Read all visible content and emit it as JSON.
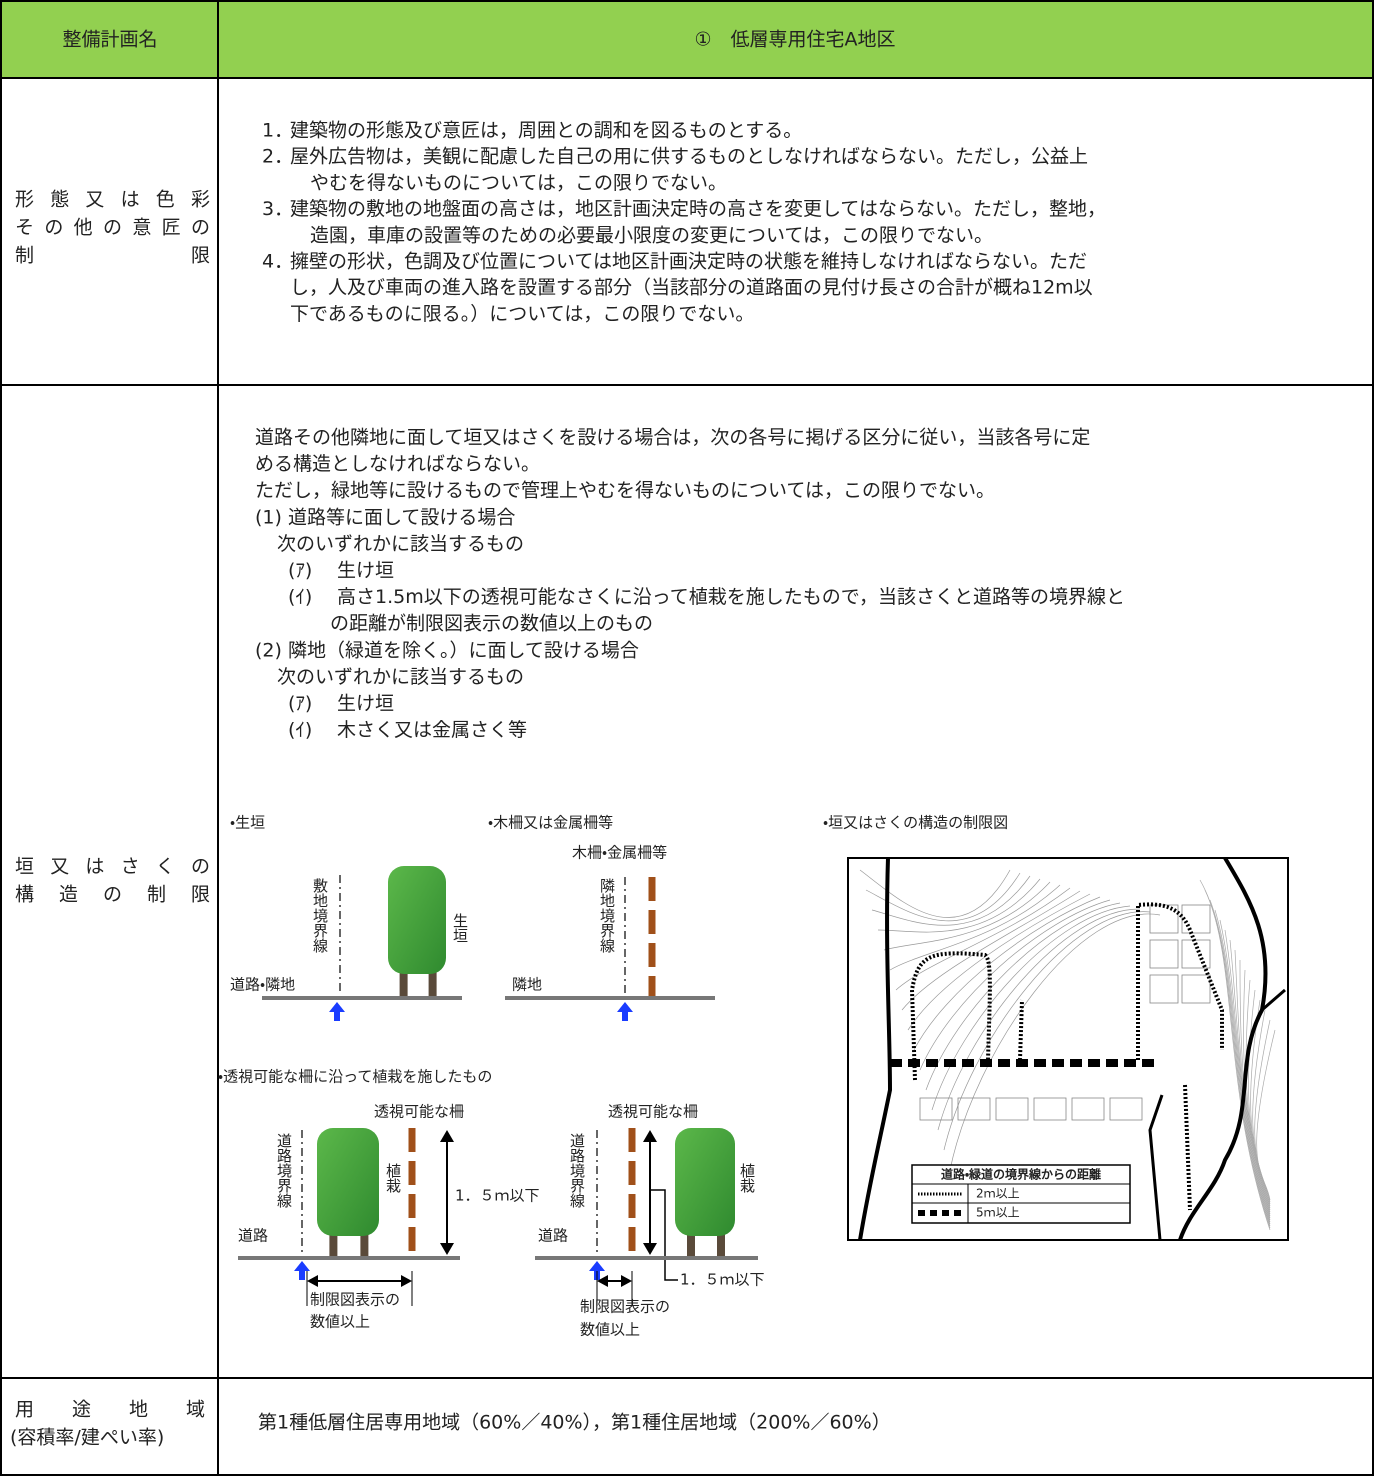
{
  "header": {
    "col1": "整備計画名",
    "col2": "①　低層専用住宅A地区"
  },
  "rows": [
    {
      "label": [
        "形態又は色彩",
        "その他の意匠の",
        "制限"
      ],
      "items": [
        {
          "number": "1．",
          "lines": [
            "建築物の形態及び意匠は，周囲との調和を図るものとする。"
          ]
        },
        {
          "number": "2．",
          "lines": [
            "屋外広告物は，美観に配慮した自己の用に供するものとしなければならない。ただし，公益上",
            "やむを得ないものについては，この限りでない。"
          ]
        },
        {
          "number": "3．",
          "lines": [
            "建築物の敷地の地盤面の高さは，地区計画決定時の高さを変更してはならない。ただし，整地，",
            "造園，車庫の設置等のための必要最小限度の変更については，この限りでない。"
          ]
        },
        {
          "number": "4．",
          "lines": [
            "擁壁の形状，色調及び位置については地区計画決定時の状態を維持しなければならない。ただ",
            "し，人及び車両の進入路を設置する部分（当該部分の道路面の見付け長さの合計が概ね12m以",
            "下であるものに限る。）については，この限りでない。"
          ]
        }
      ]
    },
    {
      "label": [
        "垣又はさくの",
        "構造の制限"
      ],
      "intro": [
        "道路その他隣地に面して垣又はさくを設ける場合は，次の各号に掲げる区分に従い，当該各号に定",
        "める構造としなければならない。",
        "ただし，緑地等に設けるもので管理上やむを得ないものについては，この限りでない。"
      ],
      "sections": [
        {
          "heading": "(1) 道路等に面して設ける場合",
          "lead": "次のいずれかに該当するもの",
          "options": [
            {
              "mark": "(ｱ)",
              "lines": [
                "生け垣"
              ]
            },
            {
              "mark": "(ｲ)",
              "lines": [
                "高さ1.5m以下の透視可能なさくに沿って植栽を施したもので，当該さくと道路等の境界線と",
                "の距離が制限図表示の数値以上のもの"
              ]
            }
          ]
        },
        {
          "heading": "(2) 隣地（緑道を除く。）に面して設ける場合",
          "lead": "次のいずれかに該当するもの",
          "options": [
            {
              "mark": "(ｱ)",
              "lines": [
                "生け垣"
              ]
            },
            {
              "mark": "(ｲ)",
              "lines": [
                "木さく又は金属さく等"
              ]
            }
          ]
        }
      ],
      "figures": {
        "hedge": {
          "caption": "・生垣",
          "boundary": "敷地境界線",
          "plant": "生垣",
          "ground": "道路・隣地"
        },
        "fence": {
          "caption": "・木柵又は金属柵等",
          "fence": "木柵・金属柵等",
          "boundary": "隣地境界線",
          "ground": "隣地"
        },
        "see_through_caption": "・透視可能な柵に沿って植栽を施したもの",
        "see_through_a": {
          "fence": "透視可能な柵",
          "boundary": "道路境界線",
          "plant": "植栽",
          "height": "1．５ｍ以下",
          "ground": "道路",
          "distance": [
            "制限図表示の",
            "数値以上"
          ]
        },
        "see_through_b": {
          "fence": "透視可能な柵",
          "boundary": "道路境界線",
          "plant": "植栽",
          "height": "1．５ｍ以下",
          "ground": "道路",
          "distance": [
            "制限図表示の",
            "数値以上"
          ]
        },
        "map": {
          "caption": "・垣又はさくの構造の制限図",
          "legend_title": "道路・緑道の境界線からの距離",
          "legend": [
            "2ｍ以上",
            "5ｍ以上"
          ]
        }
      }
    },
    {
      "label": [
        "用途地域",
        "(容積率/建ぺい率)"
      ],
      "content": "第1種低層住居専用地域（60%／40%），第1種住居地域（200%／60%）"
    }
  ]
}
